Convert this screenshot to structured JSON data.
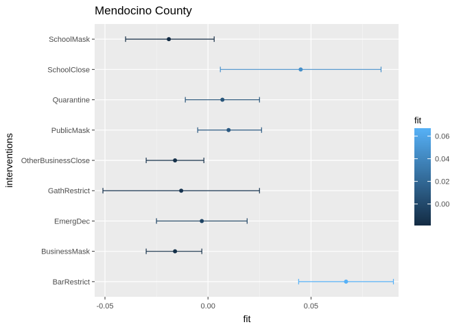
{
  "chart_data": {
    "type": "scatter",
    "subtype": "errorbar",
    "title": "Mendocino County",
    "xlabel": "fit",
    "ylabel": "interventions",
    "xlim": [
      -0.055,
      0.0925
    ],
    "x_ticks": [
      -0.05,
      0.0,
      0.05
    ],
    "x_tick_labels": [
      "-0.05",
      "0.00",
      "0.05"
    ],
    "grid": true,
    "categories": [
      "SchoolMask",
      "SchoolClose",
      "Quarantine",
      "PublicMask",
      "OtherBusinessClose",
      "GathRestrict",
      "EmergDec",
      "BusinessMask",
      "BarRestrict"
    ],
    "fit": [
      -0.019,
      0.045,
      0.007,
      0.01,
      -0.016,
      -0.013,
      -0.003,
      -0.016,
      0.067
    ],
    "lower": [
      -0.04,
      0.006,
      -0.011,
      -0.005,
      -0.03,
      -0.051,
      -0.025,
      -0.03,
      0.044
    ],
    "upper": [
      0.003,
      0.084,
      0.025,
      0.026,
      -0.002,
      0.025,
      0.019,
      -0.003,
      0.09
    ],
    "legend": {
      "title": "fit",
      "position": "right",
      "range": [
        -0.019,
        0.067
      ],
      "ticks": [
        0.0,
        0.02,
        0.04,
        0.06
      ],
      "tick_labels": [
        "0.00",
        "0.02",
        "0.04",
        "0.06"
      ],
      "color_low": "#132B43",
      "color_high": "#56B1F7"
    }
  }
}
